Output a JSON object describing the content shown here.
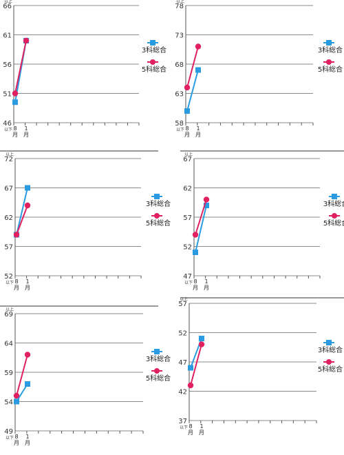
{
  "colors": {
    "series_3": "#2a9be0",
    "series_5": "#e0205f",
    "grid": "#8a8a8a",
    "axis": "#555555"
  },
  "axis_labels": {
    "above": "以上",
    "below": "以下"
  },
  "chart_data": [
    {
      "type": "line",
      "categories": [
        "8月",
        "1月"
      ],
      "ylim": [
        46,
        66
      ],
      "yticks": [
        66,
        61,
        56,
        51,
        46
      ],
      "series": [
        {
          "name": "3科総合",
          "values": [
            49.5,
            60
          ]
        },
        {
          "name": "5科総合",
          "values": [
            51,
            60
          ]
        }
      ],
      "legend": "right",
      "grid": true
    },
    {
      "type": "line",
      "categories": [
        "8月",
        "1月"
      ],
      "ylim": [
        58,
        78
      ],
      "yticks": [
        78,
        73,
        68,
        63,
        58
      ],
      "series": [
        {
          "name": "3科総合",
          "values": [
            60,
            67
          ]
        },
        {
          "name": "5科総合",
          "values": [
            64,
            71
          ]
        }
      ],
      "legend": "right",
      "grid": true
    },
    {
      "type": "line",
      "categories": [
        "8月",
        "1月"
      ],
      "ylim": [
        52,
        72
      ],
      "yticks": [
        72,
        67,
        62,
        57,
        52
      ],
      "series": [
        {
          "name": "3科総合",
          "values": [
            59,
            67
          ]
        },
        {
          "name": "5科総合",
          "values": [
            59,
            64
          ]
        }
      ],
      "legend": "right",
      "grid": true
    },
    {
      "type": "line",
      "categories": [
        "8月",
        "1月"
      ],
      "ylim": [
        47,
        67
      ],
      "yticks": [
        67,
        62,
        57,
        52,
        47
      ],
      "series": [
        {
          "name": "3科総合",
          "values": [
            51,
            59
          ]
        },
        {
          "name": "5科総合",
          "values": [
            54,
            60
          ]
        }
      ],
      "legend": "right",
      "grid": true
    },
    {
      "type": "line",
      "categories": [
        "8月",
        "1月"
      ],
      "ylim": [
        49,
        69
      ],
      "yticks": [
        69,
        64,
        59,
        54,
        49
      ],
      "series": [
        {
          "name": "3科総合",
          "values": [
            54,
            57
          ]
        },
        {
          "name": "5科総合",
          "values": [
            55,
            62
          ]
        }
      ],
      "legend": "right",
      "grid": true
    },
    {
      "type": "line",
      "categories": [
        "8月",
        "1月"
      ],
      "ylim": [
        37,
        57
      ],
      "yticks": [
        57,
        52,
        47,
        42,
        37
      ],
      "series": [
        {
          "name": "3科総合",
          "values": [
            46,
            51
          ]
        },
        {
          "name": "5科総合",
          "values": [
            43,
            50
          ]
        }
      ],
      "legend": "right",
      "grid": true
    }
  ]
}
